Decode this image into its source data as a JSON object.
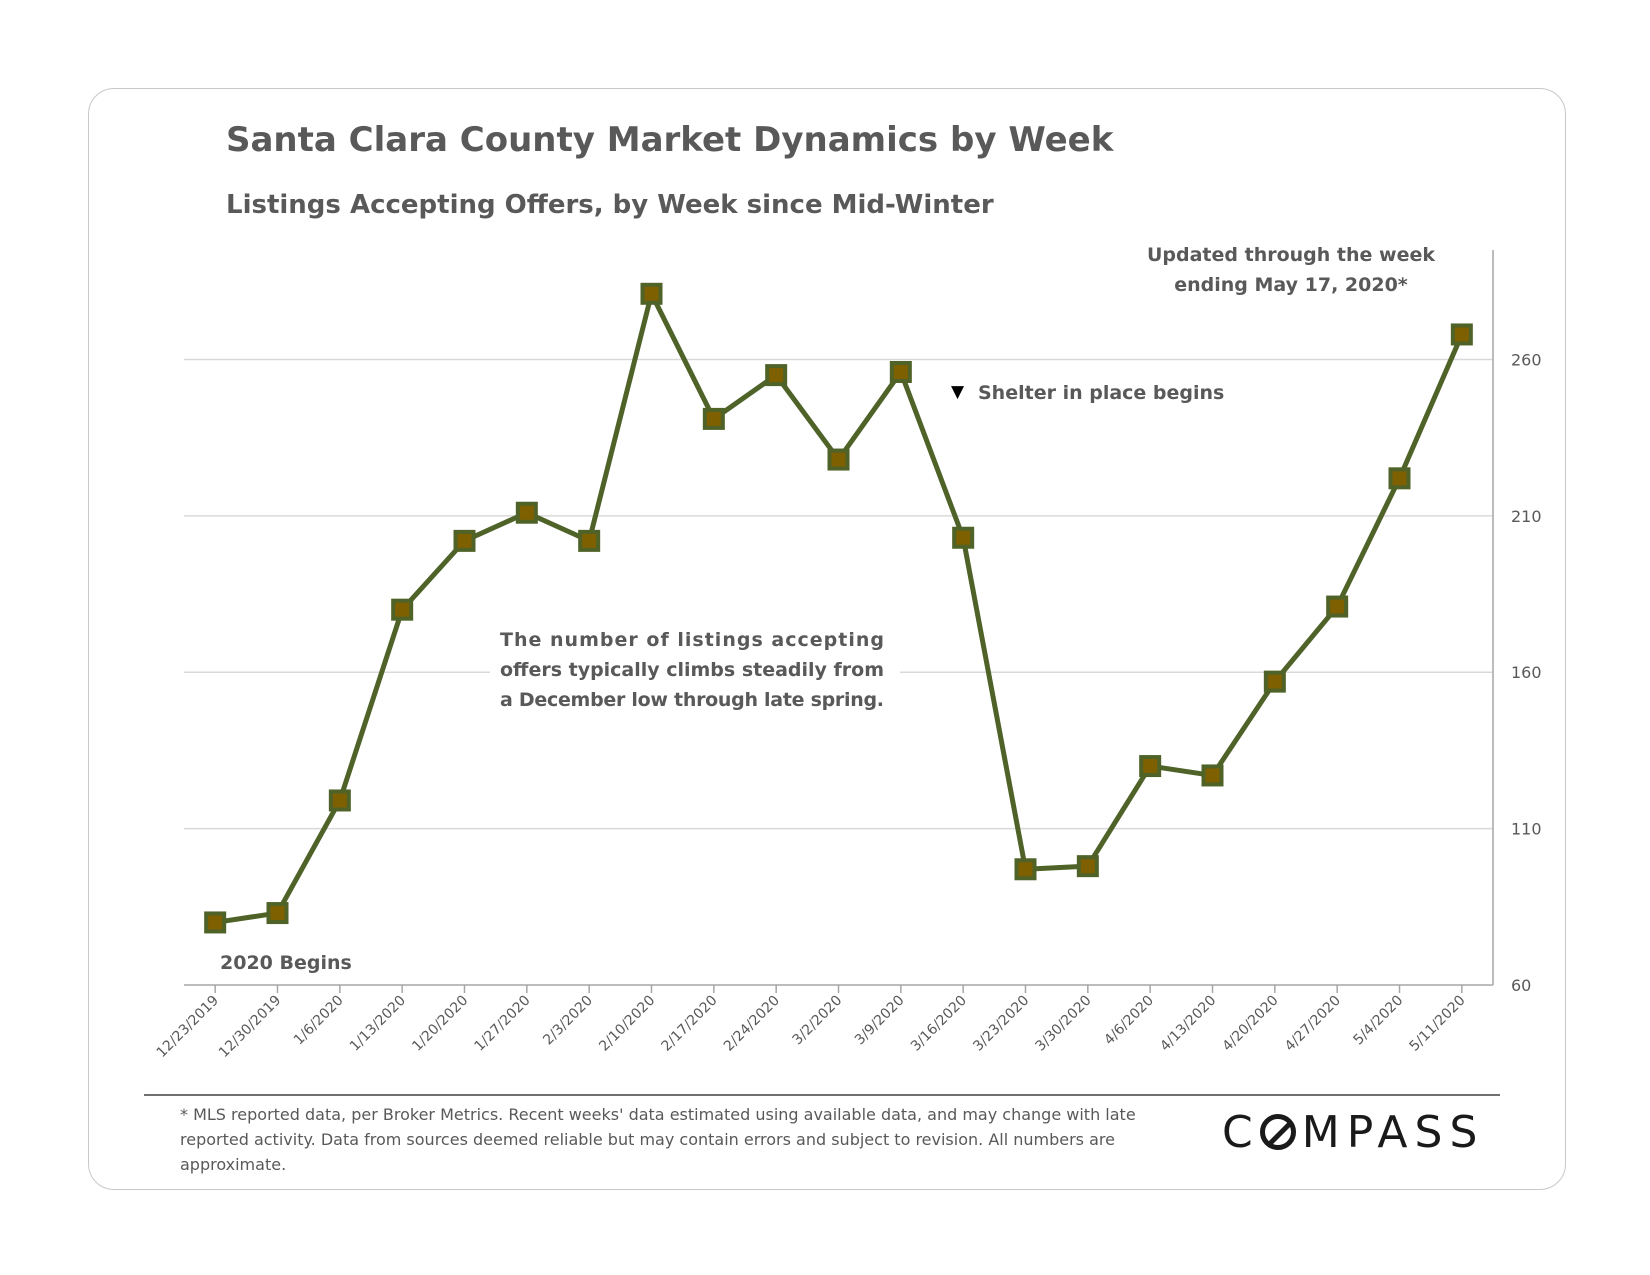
{
  "chart_data": {
    "type": "line",
    "title": "Santa Clara County Market Dynamics by Week",
    "subtitle": "Listings Accepting Offers, by Week since Mid-Winter",
    "categories": [
      "12/23/2019",
      "12/30/2019",
      "1/6/2020",
      "1/13/2020",
      "1/20/2020",
      "1/27/2020",
      "2/3/2020",
      "2/10/2020",
      "2/17/2020",
      "2/24/2020",
      "3/2/2020",
      "3/9/2020",
      "3/16/2020",
      "3/23/2020",
      "3/30/2020",
      "4/6/2020",
      "4/13/2020",
      "4/20/2020",
      "4/27/2020",
      "5/4/2020",
      "5/11/2020"
    ],
    "series": [
      {
        "values": [
          80,
          83,
          119,
          180,
          202,
          211,
          202,
          281,
          241,
          255,
          228,
          256,
          203,
          97,
          98,
          130,
          127,
          157,
          181,
          222,
          268
        ]
      }
    ],
    "y_axis": {
      "position": "right",
      "ylim": [
        60,
        295
      ],
      "ticks": [
        60,
        110,
        160,
        210,
        260
      ]
    },
    "grid": true,
    "colors": {
      "line": "#4f6228",
      "marker_fill": "#7f6000",
      "marker_edge": "#4f6228",
      "grid": "#d9d9d9"
    },
    "annotations": {
      "updated": [
        "Updated through the week",
        "ending May 17, 2020*"
      ],
      "shelter": "Shelter in place begins",
      "shelter_marker": "▼",
      "note": [
        "The number of listings accepting",
        "offers typically climbs steadily from",
        "a December low through late spring."
      ],
      "begins": "2020 Begins"
    }
  },
  "footnote": "* MLS reported data, per Broker Metrics. Recent weeks' data estimated using available data, and may change with late reported activity. Data from sources deemed reliable but may contain errors and subject to revision. All numbers are approximate.",
  "brand": {
    "name": "COMPASS",
    "logo_rest": "MPASS"
  }
}
